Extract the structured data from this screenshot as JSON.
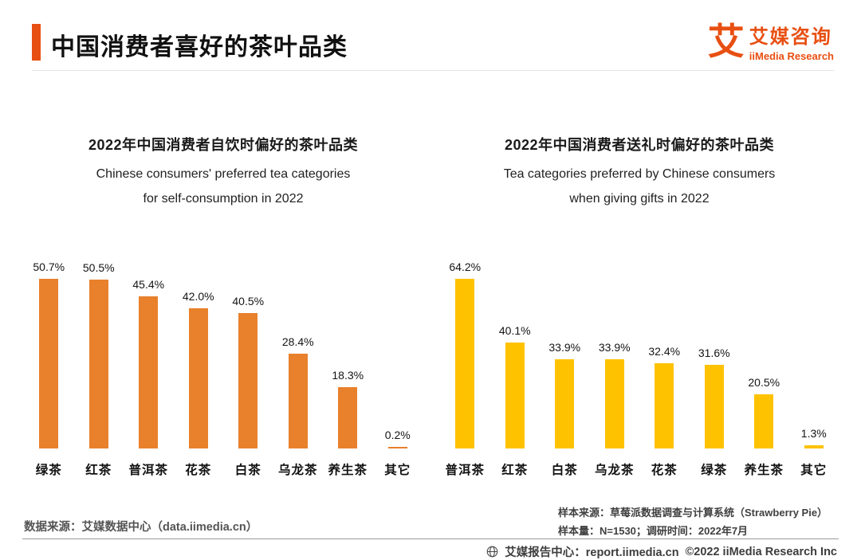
{
  "header": {
    "title": "中国消费者喜好的茶叶品类",
    "accent_color": "#E84F12"
  },
  "brand": {
    "logo_char": "艾",
    "name_cn": "艾媒咨询",
    "name_en": "iiMedia Research",
    "color": "#E84F12"
  },
  "chart_data": [
    {
      "type": "bar",
      "title": "2022年中国消费者自饮时偏好的茶叶品类",
      "subtitle_lines": [
        "Chinese consumers' preferred tea categories",
        "for self-consumption in 2022"
      ],
      "categories": [
        "绿茶",
        "红茶",
        "普洱茶",
        "花茶",
        "白茶",
        "乌龙茶",
        "养生茶",
        "其它"
      ],
      "values": [
        50.7,
        50.5,
        45.4,
        42.0,
        40.5,
        28.4,
        18.3,
        0.2
      ],
      "value_labels": [
        "50.7%",
        "50.5%",
        "45.4%",
        "42.0%",
        "40.5%",
        "28.4%",
        "18.3%",
        "0.2%"
      ],
      "bar_color": "#E8802C",
      "ylim": [
        0,
        55
      ],
      "grid": false,
      "legend": false
    },
    {
      "type": "bar",
      "title": "2022年中国消费者送礼时偏好的茶叶品类",
      "subtitle_lines": [
        "Tea categories preferred by Chinese consumers",
        "when giving gifts in 2022"
      ],
      "categories": [
        "普洱茶",
        "红茶",
        "白茶",
        "乌龙茶",
        "花茶",
        "绿茶",
        "养生茶",
        "其它"
      ],
      "values": [
        64.2,
        40.1,
        33.9,
        33.9,
        32.4,
        31.6,
        20.5,
        1.3
      ],
      "value_labels": [
        "64.2%",
        "40.1%",
        "33.9%",
        "33.9%",
        "32.4%",
        "31.6%",
        "20.5%",
        "1.3%"
      ],
      "bar_color": "#FFC200",
      "ylim": [
        0,
        70
      ],
      "grid": false,
      "legend": false
    }
  ],
  "notes": {
    "left_source": "数据来源：艾媒数据中心（data.iimedia.cn）",
    "right_lines": [
      "样本来源：草莓派数据调查与计算系统（Strawberry Pie）",
      "样本量：N=1530；调研时间：2022年7月"
    ]
  },
  "footer": {
    "report_center": "艾媒报告中心：report.iimedia.cn",
    "copyright": "©2022  iiMedia Research  Inc"
  }
}
